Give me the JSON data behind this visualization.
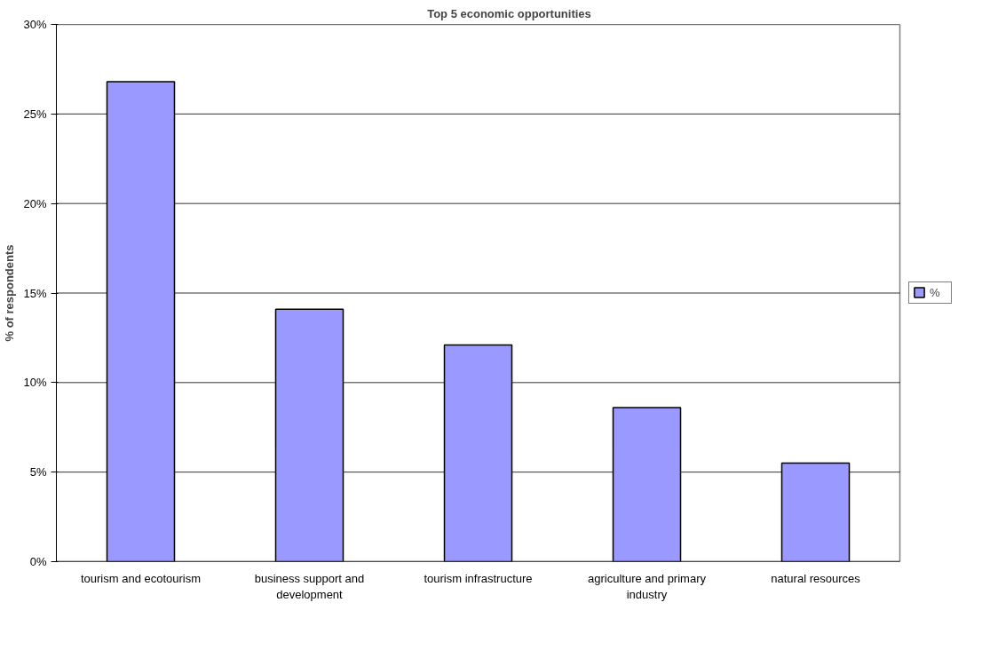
{
  "chart_data": {
    "type": "bar",
    "title": "Top 5 economic opportunities",
    "ylabel": "% of respondents",
    "categories": [
      "tourism and ecotourism",
      "business support and development",
      "tourism infrastructure",
      "agriculture and primary industry",
      "natural resources"
    ],
    "series": [
      {
        "name": "%",
        "color": "#9999ff",
        "values": [
          26.8,
          14.1,
          12.1,
          8.6,
          5.5
        ]
      }
    ],
    "ylim": [
      0,
      30
    ],
    "yticks": [
      {
        "value": 0,
        "label": "0%"
      },
      {
        "value": 5,
        "label": "5%"
      },
      {
        "value": 10,
        "label": "10%"
      },
      {
        "value": 15,
        "label": "15%"
      },
      {
        "value": 20,
        "label": "20%"
      },
      {
        "value": 25,
        "label": "25%"
      },
      {
        "value": 30,
        "label": "30%"
      }
    ],
    "grid": "y",
    "legend": "right"
  }
}
